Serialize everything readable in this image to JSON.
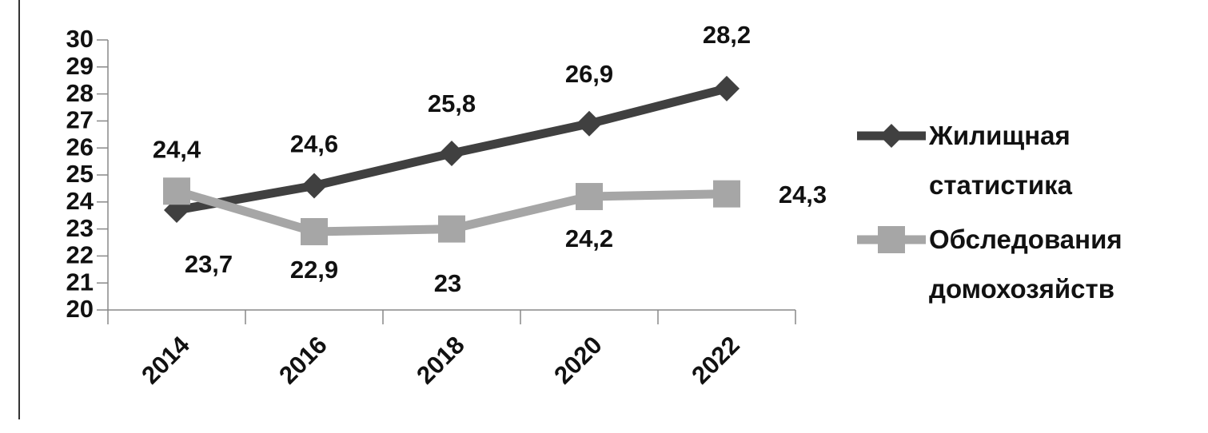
{
  "chart_data": {
    "type": "line",
    "categories": [
      "2014",
      "2016",
      "2018",
      "2020",
      "2022"
    ],
    "series": [
      {
        "name": "Жилищная статистика",
        "color": "#404040",
        "marker": "diamond",
        "values": [
          23.7,
          24.6,
          25.8,
          26.9,
          28.2
        ],
        "value_labels": [
          "23,7",
          "24,6",
          "25,8",
          "26,9",
          "28,2"
        ]
      },
      {
        "name": "Обследования домохозяйств",
        "color": "#a6a6a6",
        "marker": "square",
        "values": [
          24.4,
          22.9,
          23,
          24.2,
          24.3
        ],
        "value_labels": [
          "24,4",
          "22,9",
          "23",
          "24,2",
          "24,3"
        ]
      }
    ],
    "ylim": [
      20,
      30
    ],
    "yticks": [
      20,
      21,
      22,
      23,
      24,
      25,
      26,
      27,
      28,
      29,
      30
    ],
    "legend": "right"
  }
}
